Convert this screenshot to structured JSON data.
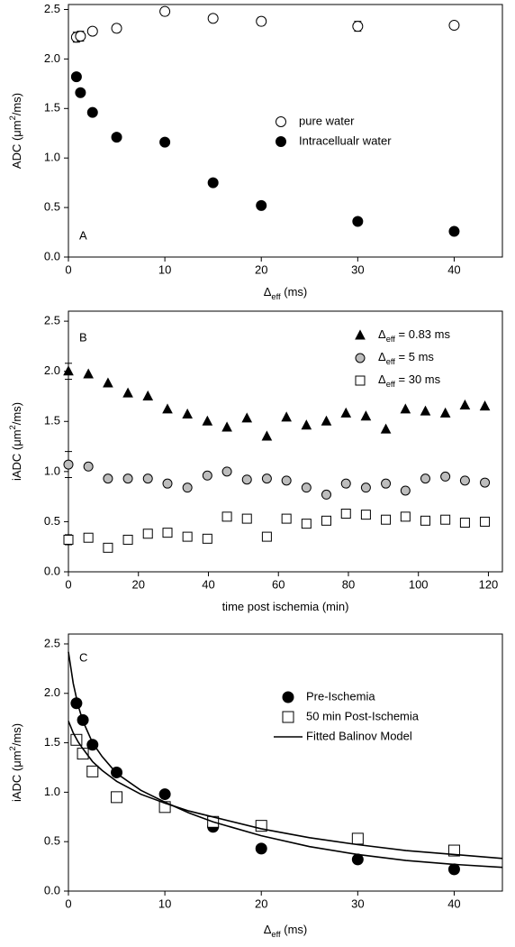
{
  "chart_data": [
    {
      "type": "scatter",
      "panel_label": "A",
      "xlabel": [
        "Δ",
        "eff",
        " (ms)"
      ],
      "ylabel": [
        "ADC (μm",
        "2",
        "/ms)"
      ],
      "xlim": [
        0,
        45
      ],
      "ylim": [
        0,
        2.55
      ],
      "xticks": [
        0,
        10,
        20,
        30,
        40
      ],
      "yticks": [
        {
          "value": 0,
          "label": "0.0"
        },
        0.5,
        {
          "value": 1,
          "label": "1.0"
        },
        1.5,
        {
          "value": 2,
          "label": "2.0"
        },
        2.5
      ],
      "series": [
        {
          "name": "pure water",
          "marker": "circle-open",
          "color": "#000000",
          "x": [
            0.83,
            1.25,
            2.5,
            5,
            10,
            15,
            20,
            30,
            40
          ],
          "values": [
            2.22,
            2.23,
            2.28,
            2.31,
            2.48,
            2.41,
            2.38,
            2.33,
            2.34
          ],
          "errors": [
            0.05,
            0.05,
            0.03,
            0.04,
            0.04,
            0.03,
            0.04,
            0.05,
            0.03
          ]
        },
        {
          "name": "Intracellualr water",
          "marker": "circle-filled",
          "color": "#000000",
          "x": [
            0.83,
            1.25,
            2.5,
            5,
            10,
            15,
            20,
            30,
            40
          ],
          "values": [
            1.82,
            1.66,
            1.46,
            1.21,
            1.16,
            0.75,
            0.52,
            0.36,
            0.26
          ]
        }
      ]
    },
    {
      "type": "scatter",
      "panel_label": "B",
      "xlabel": [
        "time post ischemia (min)"
      ],
      "ylabel": [
        "iADC (μm",
        "2",
        "/ms)"
      ],
      "xlim": [
        0,
        124
      ],
      "ylim": [
        0,
        2.6
      ],
      "xticks": [
        0,
        20,
        40,
        60,
        80,
        100,
        120
      ],
      "yticks": [
        {
          "value": 0,
          "label": "0.0"
        },
        0.5,
        {
          "value": 1,
          "label": "1.0"
        },
        1.5,
        {
          "value": 2,
          "label": "2.0"
        },
        2.5
      ],
      "series": [
        {
          "name": [
            "Δ",
            "eff",
            " = 0.83 ms"
          ],
          "marker": "triangle",
          "color": "#000000",
          "x": [
            0,
            5.7,
            11.3,
            17,
            22.7,
            28.3,
            34,
            39.7,
            45.3,
            51,
            56.7,
            62.3,
            68,
            73.7,
            79.3,
            85,
            90.7,
            96.3,
            102,
            107.7,
            113.3,
            119
          ],
          "values": [
            2.0,
            1.97,
            1.88,
            1.78,
            1.75,
            1.62,
            1.57,
            1.5,
            1.44,
            1.53,
            1.35,
            1.54,
            1.46,
            1.5,
            1.58,
            1.55,
            1.42,
            1.62,
            1.6,
            1.58,
            1.66,
            1.65
          ],
          "errors": [
            0.08,
            null,
            null,
            null,
            null,
            null,
            null,
            null,
            null,
            null,
            null,
            null,
            null,
            null,
            null,
            null,
            null,
            null,
            null,
            null,
            null,
            null
          ]
        },
        {
          "name": [
            "Δ",
            "eff",
            " = 5 ms"
          ],
          "marker": "circle-filled",
          "color": "#bdbdbd",
          "x": [
            0,
            5.7,
            11.3,
            17,
            22.7,
            28.3,
            34,
            39.7,
            45.3,
            51,
            56.7,
            62.3,
            68,
            73.7,
            79.3,
            85,
            90.7,
            96.3,
            102,
            107.7,
            113.3,
            119
          ],
          "values": [
            1.07,
            1.05,
            0.93,
            0.93,
            0.93,
            0.88,
            0.84,
            0.96,
            1.0,
            0.92,
            0.93,
            0.91,
            0.84,
            0.77,
            0.88,
            0.84,
            0.88,
            0.81,
            0.93,
            0.95,
            0.91,
            0.89
          ],
          "errors": [
            0.13,
            null,
            null,
            null,
            null,
            null,
            null,
            null,
            null,
            null,
            null,
            null,
            null,
            null,
            null,
            null,
            null,
            null,
            null,
            null,
            null,
            null
          ]
        },
        {
          "name": [
            "Δ",
            "eff",
            " = 30 ms"
          ],
          "marker": "square-open",
          "color": "#000000",
          "x": [
            0,
            5.7,
            11.3,
            17,
            22.7,
            28.3,
            34,
            39.7,
            45.3,
            51,
            56.7,
            62.3,
            68,
            73.7,
            79.3,
            85,
            90.7,
            96.3,
            102,
            107.7,
            113.3,
            119
          ],
          "values": [
            0.32,
            0.34,
            0.24,
            0.32,
            0.38,
            0.39,
            0.35,
            0.33,
            0.55,
            0.53,
            0.35,
            0.53,
            0.48,
            0.51,
            0.58,
            0.57,
            0.52,
            0.55,
            0.51,
            0.52,
            0.49,
            0.5
          ],
          "errors": [
            0.05,
            null,
            null,
            null,
            null,
            null,
            null,
            null,
            null,
            null,
            null,
            null,
            null,
            null,
            null,
            null,
            null,
            null,
            null,
            null,
            null,
            null
          ]
        }
      ]
    },
    {
      "type": "scatter",
      "panel_label": "C",
      "xlabel": [
        "Δ",
        "eff",
        " (ms)"
      ],
      "ylabel": [
        "iADC (μm",
        "2",
        "/ms)"
      ],
      "xlim": [
        0,
        45
      ],
      "ylim": [
        0,
        2.6
      ],
      "xticks": [
        0,
        10,
        20,
        30,
        40
      ],
      "yticks": [
        {
          "value": 0,
          "label": "0.0"
        },
        0.5,
        {
          "value": 1,
          "label": "1.0"
        },
        1.5,
        {
          "value": 2,
          "label": "2.0"
        },
        2.5
      ],
      "series": [
        {
          "name": "Pre-Ischemia",
          "marker": "circle-filled",
          "color": "#000000",
          "x": [
            0.83,
            1.5,
            2.5,
            5,
            10,
            15,
            20,
            30,
            40
          ],
          "values": [
            1.9,
            1.73,
            1.48,
            1.2,
            0.98,
            0.65,
            0.43,
            0.32,
            0.22
          ]
        },
        {
          "name": "50 min Post-Ischemia",
          "marker": "square-open",
          "color": "#000000",
          "x": [
            0.83,
            1.5,
            2.5,
            5,
            10,
            15,
            20,
            30,
            40
          ],
          "values": [
            1.53,
            1.39,
            1.21,
            0.95,
            0.85,
            0.7,
            0.66,
            0.53,
            0.41
          ]
        },
        {
          "name": "Fitted Balinov Model",
          "marker": "line",
          "color": "#000000",
          "x": [
            0,
            0.5,
            1,
            1.5,
            2.5,
            3.5,
            5,
            7.5,
            10,
            12.5,
            15,
            20,
            25,
            30,
            35,
            40,
            45
          ],
          "values": [
            2.42,
            2.1,
            1.88,
            1.72,
            1.5,
            1.36,
            1.19,
            1.02,
            0.9,
            0.79,
            0.7,
            0.56,
            0.45,
            0.37,
            0.31,
            0.27,
            0.24
          ]
        },
        {
          "marker": "line",
          "color": "#000000",
          "x": [
            0,
            0.5,
            1,
            1.5,
            2.5,
            3.5,
            5,
            7.5,
            10,
            12.5,
            15,
            20,
            25,
            30,
            35,
            40,
            45
          ],
          "values": [
            1.72,
            1.6,
            1.51,
            1.44,
            1.31,
            1.22,
            1.11,
            0.98,
            0.89,
            0.81,
            0.75,
            0.63,
            0.54,
            0.47,
            0.41,
            0.37,
            0.33
          ]
        }
      ]
    }
  ]
}
